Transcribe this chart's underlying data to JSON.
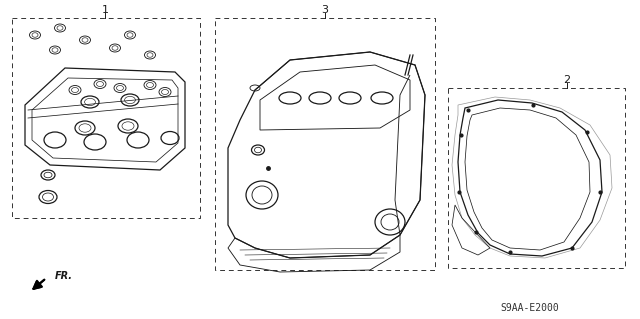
{
  "bg_color": "#ffffff",
  "diagram_code": "S9AA-E2000",
  "line_color": "#1a1a1a",
  "lw": 0.9
}
